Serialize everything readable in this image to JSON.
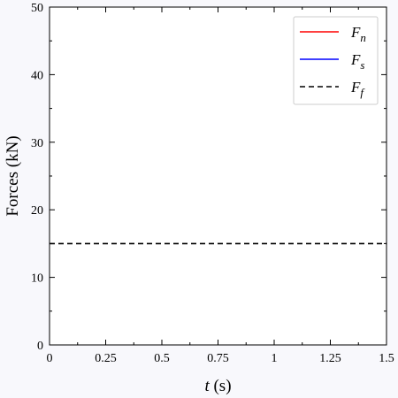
{
  "chart_data": {
    "type": "line",
    "xlabel": {
      "var": "t",
      "unit": " (s)"
    },
    "ylabel": "Forces (kN)",
    "xlim": [
      0,
      1.5
    ],
    "ylim": [
      0,
      50
    ],
    "xticks": [
      0,
      0.25,
      0.5,
      0.75,
      1,
      1.25,
      1.5
    ],
    "xtick_labels": [
      "0",
      "0.25",
      "0.5",
      "0.75",
      "1",
      "1.25",
      "1.5"
    ],
    "yticks": [
      0,
      10,
      20,
      30,
      40,
      50
    ],
    "ytick_labels": [
      "0",
      "10",
      "20",
      "30",
      "40",
      "50"
    ],
    "grid": false,
    "legend_position": "top-right",
    "series": [
      {
        "name": "F",
        "subscript": "n",
        "color": "#ff0000",
        "dash": "solid",
        "x": [],
        "y": []
      },
      {
        "name": "F",
        "subscript": "s",
        "color": "#0000ff",
        "dash": "solid",
        "x": [],
        "y": []
      },
      {
        "name": "F",
        "subscript": "f",
        "color": "#000000",
        "dash": "dashed",
        "x": [
          0,
          1.5
        ],
        "y": [
          15,
          15
        ]
      }
    ]
  }
}
